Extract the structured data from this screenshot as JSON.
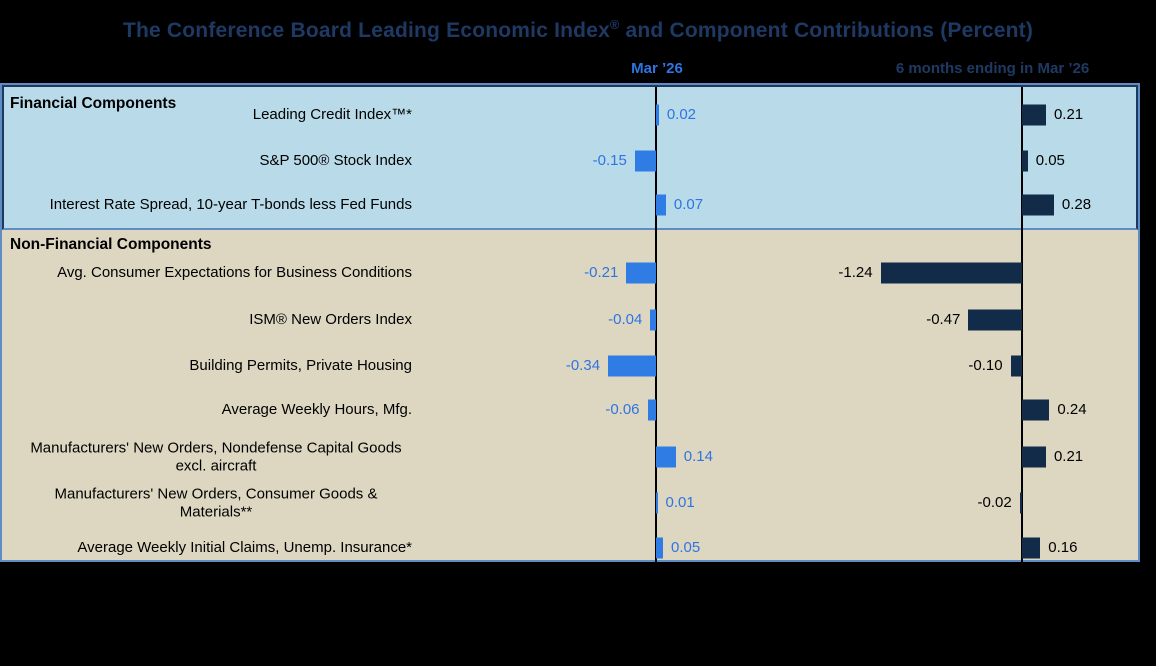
{
  "title": {
    "prefix": "The Conference Board Leading Economic Index",
    "sup": "®",
    "suffix": " and Component Contributions (Percent)"
  },
  "column_headers": {
    "mar": "Mar  ’26",
    "six_months": "6 months ending in Mar  ’26"
  },
  "sections": {
    "financial": {
      "label": "Financial Components"
    },
    "non_financial": {
      "label": "Non-Financial Components"
    }
  },
  "chart_data": {
    "type": "bar",
    "orientation": "horizontal",
    "title": "The Conference Board Leading Economic Index® and Component Contributions (Percent)",
    "categories": [
      "Leading Credit Index™*",
      "S&P 500® Stock Index",
      "Interest Rate Spread, 10-year T-bonds less Fed Funds",
      "Avg. Consumer Expectations for Business Conditions",
      "ISM® New Orders Index",
      "Building Permits, Private Housing",
      "Average Weekly Hours, Mfg.",
      "Manufacturers' New Orders, Nondefense Capital Goods excl. aircraft",
      "Manufacturers' New Orders, Consumer Goods & Materials**",
      "Average Weekly Initial Claims, Unemp. Insurance*"
    ],
    "section_assignment": [
      {
        "name": "Financial Components",
        "row_indices": [
          0,
          1,
          2
        ]
      },
      {
        "name": "Non-Financial Components",
        "row_indices": [
          3,
          4,
          5,
          6,
          7,
          8,
          9
        ]
      }
    ],
    "series": [
      {
        "name": "Mar ’26",
        "values": [
          0.02,
          -0.15,
          0.07,
          -0.21,
          -0.04,
          -0.34,
          -0.06,
          0.14,
          0.01,
          0.05
        ]
      },
      {
        "name": "6 months ending in Mar ’26",
        "values": [
          0.21,
          0.05,
          0.28,
          -1.24,
          -0.47,
          -0.1,
          0.24,
          0.21,
          -0.02,
          0.16
        ]
      }
    ],
    "value_label_format": "two-decimals",
    "axes": "each panel has its own zero baseline, bars extend left (negative) or right (positive)",
    "legend_position": "column headers above each panel",
    "grid": false
  },
  "colors": {
    "page_background": "#000000",
    "title_text": "#1e3a64",
    "mar_accent": "#2e75e1",
    "mar_bar": "#2f7de4",
    "six_months_bar": "#112b48",
    "financial_panel": "#b9dbe9",
    "non_financial_panel": "#ddd7c2",
    "financial_border": "#1c3a5f",
    "plot_border": "#5f8cc4",
    "axis_line": "#000000",
    "value_text_six": "#000000"
  }
}
